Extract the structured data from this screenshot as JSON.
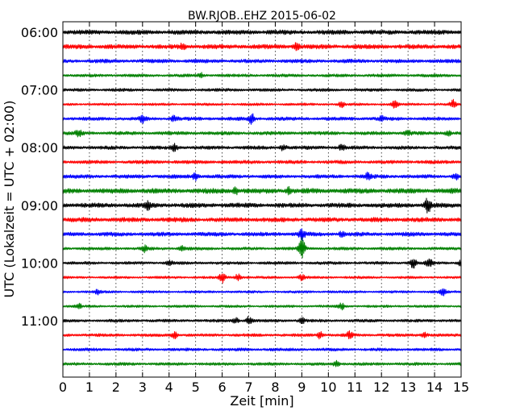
{
  "chart_data": {
    "type": "line",
    "title": "BW.RJOB..EHZ 2015-06-02",
    "xlabel": "Zeit  [min]",
    "ylabel": "UTC (Lokalzeit = UTC + 02:00)",
    "xlim": [
      0,
      15
    ],
    "x_ticks": [
      "0",
      "1",
      "2",
      "3",
      "4",
      "5",
      "6",
      "7",
      "8",
      "9",
      "10",
      "11",
      "12",
      "13",
      "14",
      "15"
    ],
    "y_tick_labels": [
      "06:00",
      "07:00",
      "08:00",
      "09:00",
      "10:00",
      "11:00"
    ],
    "grid": true,
    "trace_colors": [
      "#000000",
      "#ff0000",
      "#0000ff",
      "#008000"
    ],
    "traces": [
      {
        "start": "06:00",
        "amp": 0.9,
        "events": []
      },
      {
        "start": "06:15",
        "amp": 0.9,
        "events": [
          {
            "t": 8.8,
            "a": 1.6
          },
          {
            "t": 4.5,
            "a": 1.0
          }
        ]
      },
      {
        "start": "06:30",
        "amp": 0.75,
        "events": []
      },
      {
        "start": "06:45",
        "amp": 0.6,
        "events": [
          {
            "t": 5.2,
            "a": 0.9
          }
        ]
      },
      {
        "start": "07:00",
        "amp": 0.6,
        "events": []
      },
      {
        "start": "07:15",
        "amp": 0.5,
        "events": [
          {
            "t": 10.5,
            "a": 1.2
          },
          {
            "t": 12.5,
            "a": 1.6
          },
          {
            "t": 14.7,
            "a": 1.8
          }
        ]
      },
      {
        "start": "07:30",
        "amp": 0.7,
        "events": [
          {
            "t": 7.1,
            "a": 2.4
          },
          {
            "t": 3.0,
            "a": 1.5
          },
          {
            "t": 4.2,
            "a": 1.2
          },
          {
            "t": 12.0,
            "a": 1.0
          }
        ]
      },
      {
        "start": "07:45",
        "amp": 0.7,
        "events": [
          {
            "t": 0.6,
            "a": 1.6
          },
          {
            "t": 13.0,
            "a": 1.0
          },
          {
            "t": 14.5,
            "a": 1.2
          }
        ]
      },
      {
        "start": "08:00",
        "amp": 0.7,
        "events": [
          {
            "t": 4.2,
            "a": 1.6
          },
          {
            "t": 8.3,
            "a": 1.3
          },
          {
            "t": 10.5,
            "a": 1.2
          }
        ]
      },
      {
        "start": "08:15",
        "amp": 0.7,
        "events": []
      },
      {
        "start": "08:30",
        "amp": 0.75,
        "events": [
          {
            "t": 5.0,
            "a": 1.6
          },
          {
            "t": 11.5,
            "a": 1.4
          },
          {
            "t": 14.8,
            "a": 1.2
          }
        ]
      },
      {
        "start": "08:45",
        "amp": 1.0,
        "events": [
          {
            "t": 6.5,
            "a": 1.4
          },
          {
            "t": 8.5,
            "a": 1.3
          }
        ]
      },
      {
        "start": "09:00",
        "amp": 0.9,
        "events": [
          {
            "t": 3.2,
            "a": 1.4
          },
          {
            "t": 13.75,
            "a": 3.2
          }
        ]
      },
      {
        "start": "09:15",
        "amp": 0.9,
        "events": []
      },
      {
        "start": "09:30",
        "amp": 0.8,
        "events": [
          {
            "t": 9.0,
            "a": 2.5
          },
          {
            "t": 10.5,
            "a": 1.0
          }
        ]
      },
      {
        "start": "09:45",
        "amp": 0.6,
        "events": [
          {
            "t": 9.0,
            "a": 5.5
          },
          {
            "t": 3.1,
            "a": 1.5
          },
          {
            "t": 4.5,
            "a": 1.0
          }
        ]
      },
      {
        "start": "10:00",
        "amp": 0.6,
        "events": [
          {
            "t": 13.2,
            "a": 2.2
          },
          {
            "t": 13.8,
            "a": 2.0
          },
          {
            "t": 4.0,
            "a": 1.2
          },
          {
            "t": 15.0,
            "a": 1.2
          }
        ]
      },
      {
        "start": "10:15",
        "amp": 0.5,
        "events": [
          {
            "t": 6.0,
            "a": 2.2
          },
          {
            "t": 6.6,
            "a": 1.6
          },
          {
            "t": 9.0,
            "a": 1.2
          }
        ]
      },
      {
        "start": "10:30",
        "amp": 0.5,
        "events": [
          {
            "t": 14.3,
            "a": 1.6
          },
          {
            "t": 1.3,
            "a": 1.0
          }
        ]
      },
      {
        "start": "10:45",
        "amp": 0.5,
        "events": [
          {
            "t": 10.5,
            "a": 1.3
          },
          {
            "t": 0.6,
            "a": 1.0
          }
        ]
      },
      {
        "start": "11:00",
        "amp": 0.6,
        "events": [
          {
            "t": 7.0,
            "a": 1.6
          },
          {
            "t": 6.5,
            "a": 1.3
          },
          {
            "t": 9.0,
            "a": 1.2
          }
        ]
      },
      {
        "start": "11:15",
        "amp": 0.6,
        "events": [
          {
            "t": 4.2,
            "a": 1.6
          },
          {
            "t": 9.7,
            "a": 1.6
          },
          {
            "t": 10.8,
            "a": 1.5
          },
          {
            "t": 13.6,
            "a": 1.4
          }
        ]
      },
      {
        "start": "11:30",
        "amp": 0.6,
        "events": []
      },
      {
        "start": "11:45",
        "amp": 0.6,
        "events": [
          {
            "t": 10.3,
            "a": 1.2
          }
        ]
      }
    ]
  }
}
